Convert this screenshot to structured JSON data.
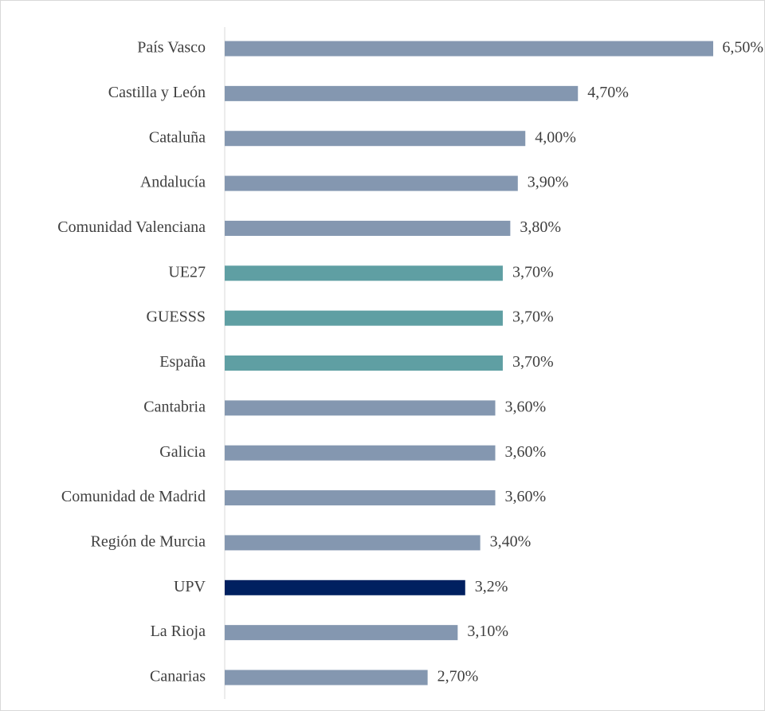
{
  "chart_data": {
    "type": "bar",
    "orientation": "horizontal",
    "categories": [
      "País Vasco",
      "Castilla y León",
      "Cataluña",
      "Andalucía",
      "Comunidad Valenciana",
      "UE27",
      "GUESSS",
      "España",
      "Cantabria",
      "Galicia",
      "Comunidad de Madrid",
      "Región de Murcia",
      "UPV",
      "La Rioja",
      "Canarias"
    ],
    "values": [
      6.5,
      4.7,
      4.0,
      3.9,
      3.8,
      3.7,
      3.7,
      3.7,
      3.6,
      3.6,
      3.6,
      3.4,
      3.2,
      3.1,
      2.7
    ],
    "value_labels": [
      "6,50%",
      "4,70%",
      "4,00%",
      "3,90%",
      "3,80%",
      "3,70%",
      "3,70%",
      "3,70%",
      "3,60%",
      "3,60%",
      "3,60%",
      "3,40%",
      "3,2%",
      "3,10%",
      "2,70%"
    ],
    "colors": [
      "#8497b0",
      "#8497b0",
      "#8497b0",
      "#8497b0",
      "#8497b0",
      "#5f9fa3",
      "#5f9fa3",
      "#5f9fa3",
      "#8497b0",
      "#8497b0",
      "#8497b0",
      "#8497b0",
      "#002060",
      "#8497b0",
      "#8497b0"
    ]
  }
}
